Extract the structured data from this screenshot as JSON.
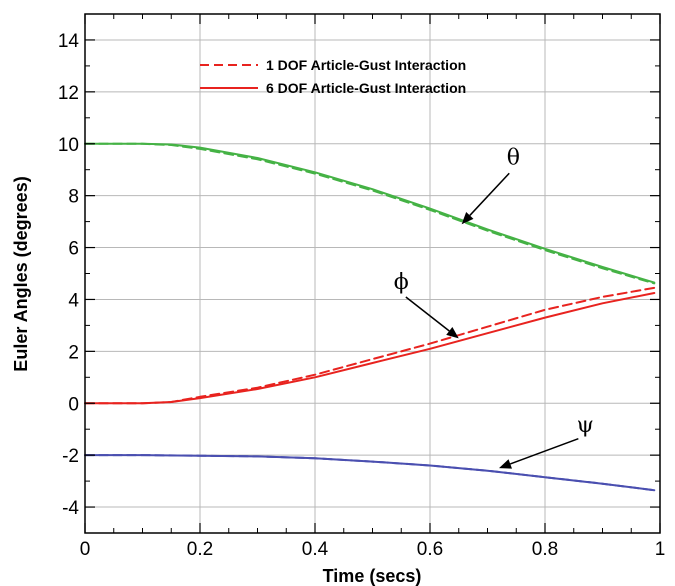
{
  "chart_data": {
    "type": "line",
    "title": "",
    "xlabel": "Time (secs)",
    "ylabel": "Euler Angles (degrees)",
    "xlim": [
      0,
      1
    ],
    "ylim": [
      -5,
      15
    ],
    "xticks": [
      0,
      0.2,
      0.4,
      0.6,
      0.8,
      1
    ],
    "xtick_labels": [
      "0",
      "0.2",
      "0.4",
      "0.6",
      "0.8",
      "1"
    ],
    "yticks": [
      -4,
      -2,
      0,
      2,
      4,
      6,
      8,
      10,
      12,
      14
    ],
    "ytick_labels": [
      "-4",
      "-2",
      "0",
      "2",
      "4",
      "6",
      "8",
      "10",
      "12",
      "14"
    ],
    "grid": true,
    "legend_position": "top-center",
    "legend": [
      {
        "label": "1 DOF Article-Gust Interaction",
        "style": "dashed",
        "color": "#e8231f"
      },
      {
        "label": "6 DOF Article-Gust Interaction",
        "style": "solid",
        "color": "#e8231f"
      }
    ],
    "series": [
      {
        "angle": "theta",
        "model": "1 DOF",
        "style": "dashed",
        "color": "#45b245",
        "x": [
          0,
          0.1,
          0.15,
          0.2,
          0.3,
          0.4,
          0.5,
          0.6,
          0.7,
          0.8,
          0.9,
          0.99
        ],
        "y": [
          10.0,
          10.0,
          9.95,
          9.8,
          9.4,
          8.85,
          8.2,
          7.45,
          6.65,
          5.9,
          5.2,
          4.62
        ]
      },
      {
        "angle": "theta",
        "model": "6 DOF",
        "style": "solid",
        "color": "#45b245",
        "x": [
          0,
          0.1,
          0.15,
          0.2,
          0.3,
          0.4,
          0.5,
          0.6,
          0.7,
          0.8,
          0.9,
          0.99
        ],
        "y": [
          10.0,
          10.0,
          9.97,
          9.85,
          9.45,
          8.9,
          8.25,
          7.5,
          6.7,
          5.95,
          5.25,
          4.65
        ]
      },
      {
        "angle": "phi",
        "model": "1 DOF",
        "style": "dashed",
        "color": "#e8231f",
        "x": [
          0,
          0.1,
          0.15,
          0.2,
          0.3,
          0.4,
          0.5,
          0.6,
          0.7,
          0.8,
          0.9,
          0.99
        ],
        "y": [
          0.0,
          0.0,
          0.05,
          0.25,
          0.6,
          1.1,
          1.7,
          2.3,
          2.95,
          3.6,
          4.1,
          4.45
        ]
      },
      {
        "angle": "phi",
        "model": "6 DOF",
        "style": "solid",
        "color": "#e8231f",
        "x": [
          0,
          0.1,
          0.15,
          0.2,
          0.3,
          0.4,
          0.5,
          0.6,
          0.7,
          0.8,
          0.9,
          0.99
        ],
        "y": [
          0.0,
          0.0,
          0.05,
          0.2,
          0.55,
          1.0,
          1.55,
          2.1,
          2.7,
          3.3,
          3.85,
          4.25
        ]
      },
      {
        "angle": "psi",
        "model": "1 DOF",
        "style": "dashed",
        "color": "#4a4fb0",
        "x": [
          0,
          0.1,
          0.2,
          0.3,
          0.4,
          0.5,
          0.6,
          0.7,
          0.8,
          0.9,
          0.99
        ],
        "y": [
          -2.0,
          -2.0,
          -2.02,
          -2.05,
          -2.12,
          -2.25,
          -2.4,
          -2.6,
          -2.85,
          -3.1,
          -3.35
        ]
      },
      {
        "angle": "psi",
        "model": "6 DOF",
        "style": "solid",
        "color": "#4a4fb0",
        "x": [
          0,
          0.1,
          0.2,
          0.3,
          0.4,
          0.5,
          0.6,
          0.7,
          0.8,
          0.9,
          0.99
        ],
        "y": [
          -2.0,
          -2.0,
          -2.02,
          -2.05,
          -2.12,
          -2.25,
          -2.4,
          -2.6,
          -2.85,
          -3.1,
          -3.35
        ]
      }
    ],
    "annotations": [
      {
        "text": "θ",
        "label_x": 0.745,
        "label_y": 9.2,
        "point_x": 0.655,
        "point_y": 6.9
      },
      {
        "text": "ϕ",
        "label_x": 0.55,
        "label_y": 4.4,
        "point_x": 0.65,
        "point_y": 2.5
      },
      {
        "text": "ψ",
        "label_x": 0.87,
        "label_y": -1.1,
        "point_x": 0.72,
        "point_y": -2.5
      }
    ]
  }
}
